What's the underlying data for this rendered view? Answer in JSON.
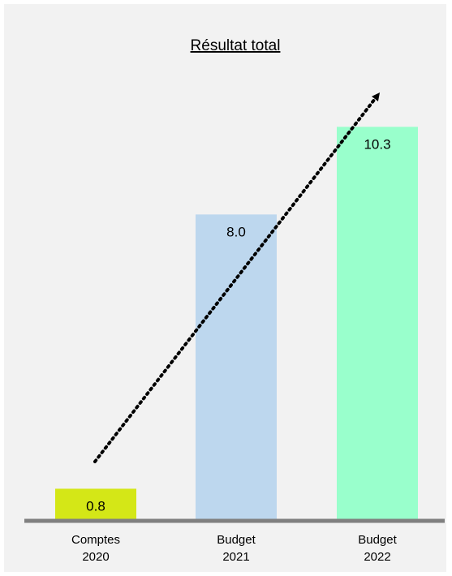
{
  "chart_data": {
    "type": "bar",
    "title": "Résultat  total",
    "categories": [
      [
        "Comptes",
        "2020"
      ],
      [
        "Budget",
        "2021"
      ],
      [
        "Budget",
        "2022"
      ]
    ],
    "values": [
      0.8,
      8.0,
      10.3
    ],
    "value_labels": [
      "0.8",
      "8.0",
      "10.3"
    ],
    "colors": [
      "#d4e717",
      "#bdd7ee",
      "#99ffcc"
    ],
    "baseline_color": "#808080",
    "trend_arrow_color": "#000000",
    "ylim": [
      0,
      11.5
    ],
    "grid": false,
    "legend": "none"
  }
}
